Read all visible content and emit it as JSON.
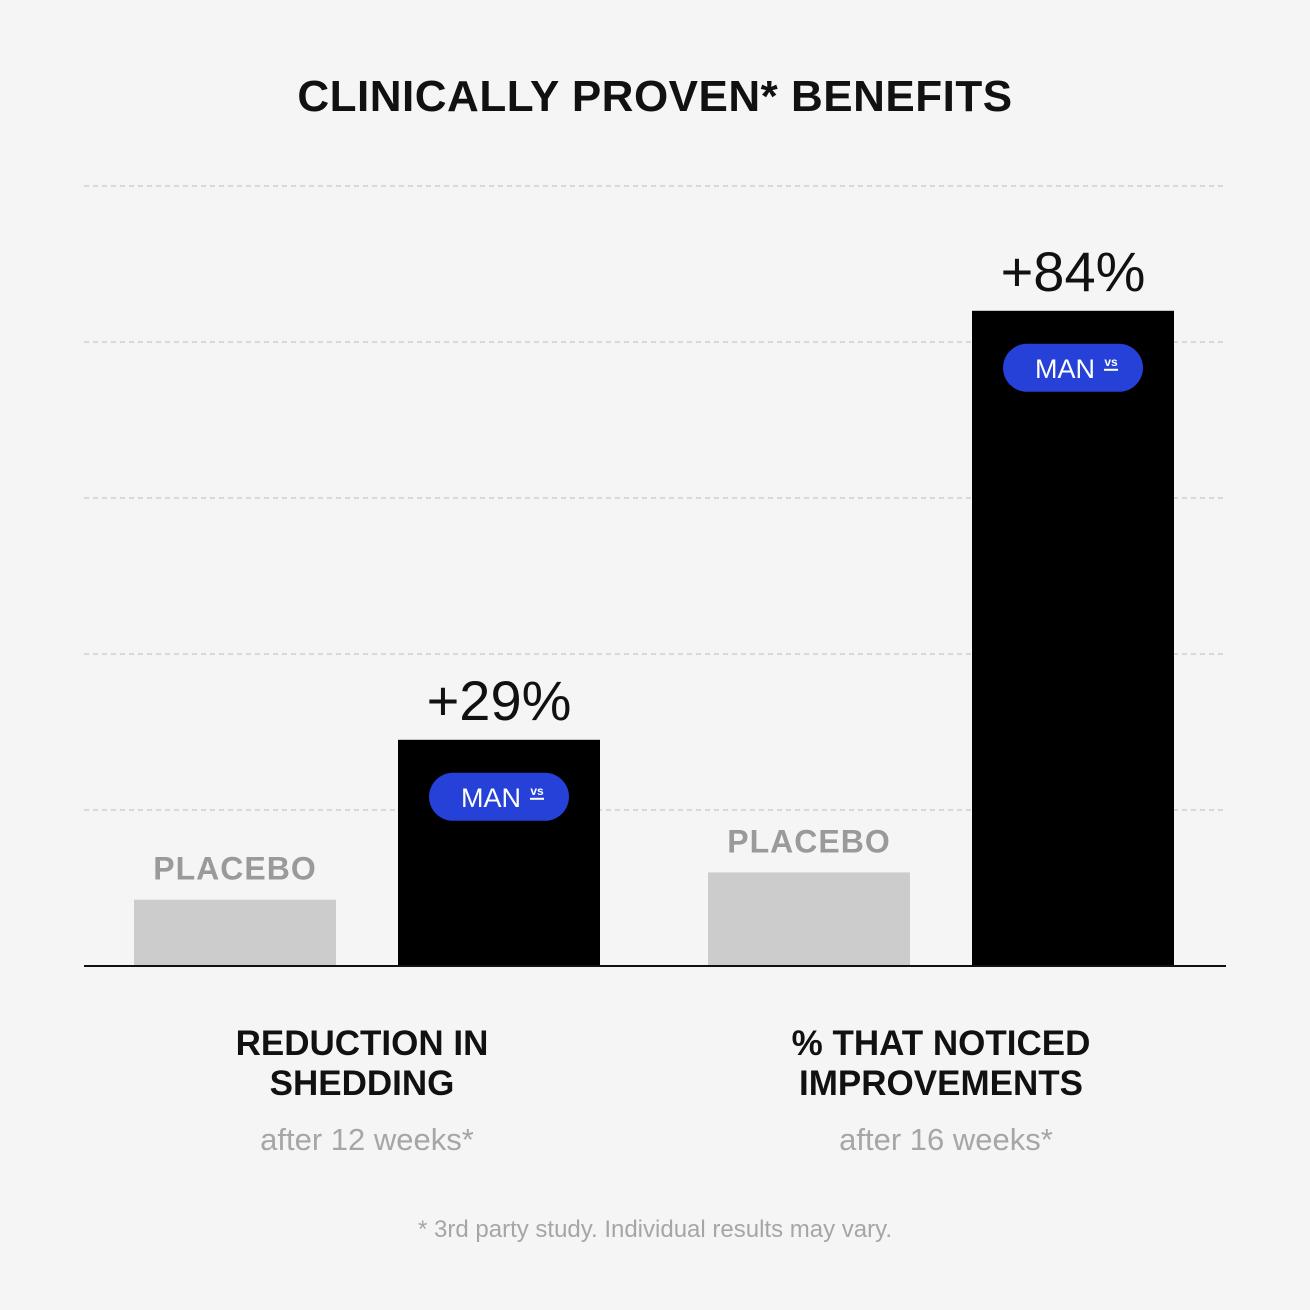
{
  "chart_data": {
    "type": "bar",
    "title": "CLINICALLY PROVEN* BENEFITS",
    "ylim": [
      0,
      100
    ],
    "grid": true,
    "categories": [
      {
        "title_line1": "REDUCTION IN",
        "title_line2": "SHEDDING",
        "subtitle": "after 12 weeks*"
      },
      {
        "title_line1": "% THAT NOTICED",
        "title_line2": "IMPROVEMENTS",
        "subtitle": "after 16 weeks*"
      }
    ],
    "series": [
      {
        "name": "PLACEBO",
        "values": [
          8.5,
          12
        ],
        "labels": [
          "PLACEBO",
          "PLACEBO"
        ],
        "color": "#cccccc"
      },
      {
        "name": "MAN vs",
        "values": [
          29,
          84
        ],
        "labels": [
          "+29%",
          "+84%"
        ],
        "color": "#000000"
      }
    ],
    "badge": {
      "text": "MAN",
      "sup": "vs",
      "color": "#2541d8"
    },
    "footnote": "* 3rd party study. Individual results may vary."
  }
}
